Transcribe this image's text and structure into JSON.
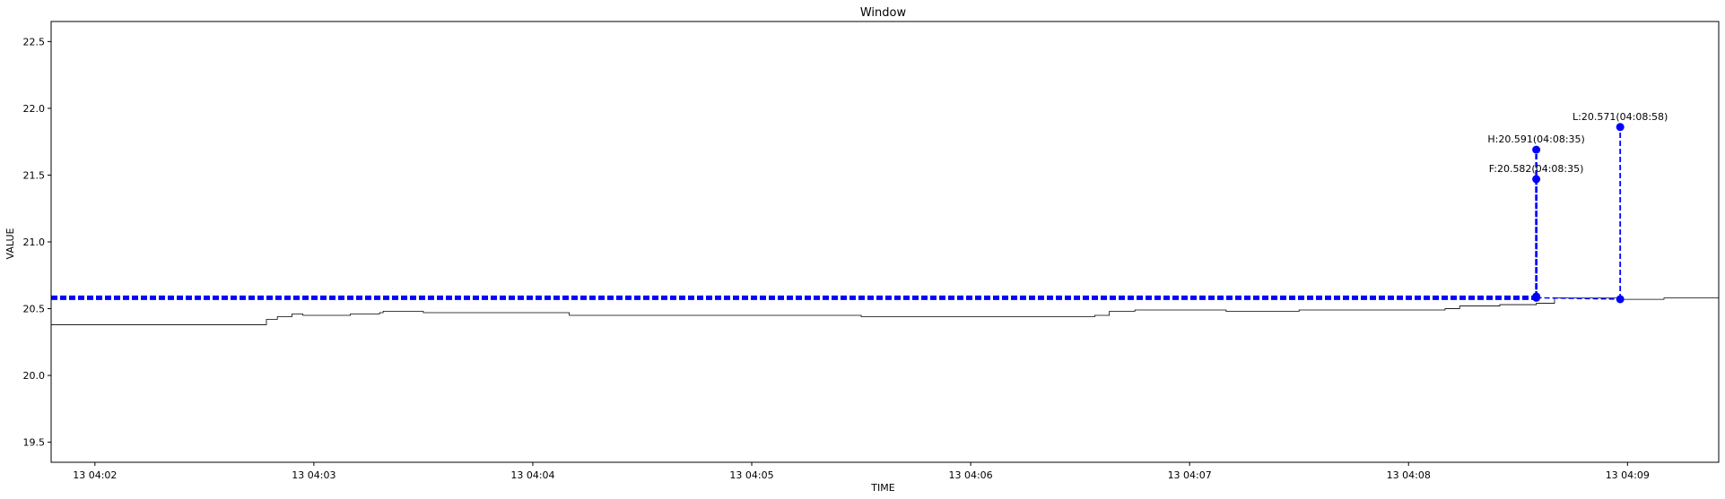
{
  "chart_data": {
    "type": "line",
    "title": "Window",
    "xlabel": "TIME",
    "ylabel": "VALUE",
    "xlim": [
      "2000-01-13T04:01:48",
      "2000-01-13T04:09:25"
    ],
    "ylim": [
      19.35,
      22.65
    ],
    "y_ticks": [
      19.5,
      20.0,
      20.5,
      21.0,
      21.5,
      22.0,
      22.5
    ],
    "x_ticks": [
      {
        "label": "13 04:02",
        "time": "2000-01-13T04:02:00"
      },
      {
        "label": "13 04:03",
        "time": "2000-01-13T04:03:00"
      },
      {
        "label": "13 04:04",
        "time": "2000-01-13T04:04:00"
      },
      {
        "label": "13 04:05",
        "time": "2000-01-13T04:05:00"
      },
      {
        "label": "13 04:06",
        "time": "2000-01-13T04:06:00"
      },
      {
        "label": "13 04:07",
        "time": "2000-01-13T04:07:00"
      },
      {
        "label": "13 04:08",
        "time": "2000-01-13T04:08:00"
      },
      {
        "label": "13 04:09",
        "time": "2000-01-13T04:09:00"
      }
    ],
    "grid": false,
    "line_color": "#000000",
    "accent_color": "#0000ff",
    "series": [
      {
        "x": [
          "2000-01-13T04:01:48",
          "2000-01-13T04:02:20",
          "2000-01-13T04:02:35",
          "2000-01-13T04:02:46",
          "2000-01-13T04:02:47",
          "2000-01-13T04:02:50",
          "2000-01-13T04:02:54",
          "2000-01-13T04:02:57",
          "2000-01-13T04:03:00",
          "2000-01-13T04:03:10",
          "2000-01-13T04:03:18",
          "2000-01-13T04:03:19",
          "2000-01-13T04:03:30",
          "2000-01-13T04:04:00",
          "2000-01-13T04:04:10",
          "2000-01-13T04:04:30",
          "2000-01-13T04:05:00",
          "2000-01-13T04:05:30",
          "2000-01-13T04:06:00",
          "2000-01-13T04:06:20",
          "2000-01-13T04:06:34",
          "2000-01-13T04:06:38",
          "2000-01-13T04:06:45",
          "2000-01-13T04:07:00",
          "2000-01-13T04:07:10",
          "2000-01-13T04:07:30",
          "2000-01-13T04:07:50",
          "2000-01-13T04:08:10",
          "2000-01-13T04:08:14",
          "2000-01-13T04:08:25",
          "2000-01-13T04:08:35",
          "2000-01-13T04:08:40",
          "2000-01-13T04:08:58",
          "2000-01-13T04:09:10",
          "2000-01-13T04:09:25"
        ],
        "y": [
          20.38,
          20.38,
          20.38,
          20.38,
          20.42,
          20.44,
          20.46,
          20.45,
          20.45,
          20.46,
          20.47,
          20.48,
          20.47,
          20.47,
          20.45,
          20.45,
          20.45,
          20.44,
          20.44,
          20.44,
          20.45,
          20.48,
          20.49,
          20.49,
          20.48,
          20.49,
          20.49,
          20.5,
          20.52,
          20.53,
          20.54,
          20.58,
          20.57,
          20.58,
          20.57
        ]
      }
    ],
    "level_line": {
      "y": 20.582,
      "from": "2000-01-13T04:01:48",
      "to": "2000-01-13T04:08:35"
    },
    "stems": [
      {
        "x": "2000-01-13T04:08:35",
        "y0": 20.582,
        "y1": 21.47
      },
      {
        "x": "2000-01-13T04:08:35",
        "y0": 20.591,
        "y1": 21.69
      },
      {
        "x": "2000-01-13T04:08:58",
        "y0": 20.571,
        "y1": 21.86
      }
    ],
    "points": [
      {
        "x": "2000-01-13T04:08:35",
        "y": 20.582
      },
      {
        "x": "2000-01-13T04:08:35",
        "y": 20.591
      },
      {
        "x": "2000-01-13T04:08:58",
        "y": 20.571
      },
      {
        "x": "2000-01-13T04:08:35",
        "y": 21.47
      },
      {
        "x": "2000-01-13T04:08:35",
        "y": 21.69
      },
      {
        "x": "2000-01-13T04:08:58",
        "y": 21.86
      }
    ],
    "annotations": [
      {
        "text": "F:20.582(04:08:35)",
        "x": "2000-01-13T04:08:35",
        "y": 21.47
      },
      {
        "text": "H:20.591(04:08:35)",
        "x": "2000-01-13T04:08:35",
        "y": 21.69
      },
      {
        "text": "L:20.571(04:08:58)",
        "x": "2000-01-13T04:08:58",
        "y": 21.86
      }
    ]
  }
}
